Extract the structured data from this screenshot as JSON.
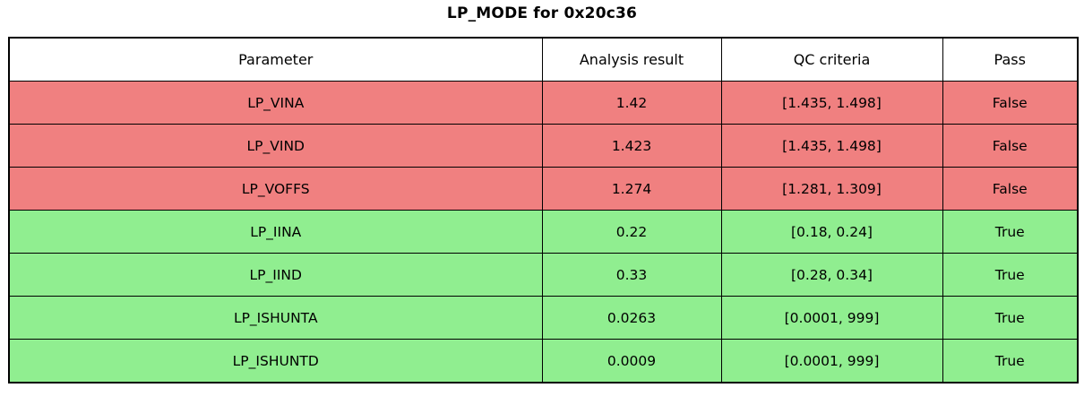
{
  "colors": {
    "fail_row": "#f08080",
    "pass_row": "#90ee90",
    "border": "#000000",
    "text": "#000000",
    "background": "#ffffff"
  },
  "chart_data": {
    "type": "table",
    "title": "LP_MODE for 0x20c36",
    "columns": [
      "Parameter",
      "Analysis result",
      "QC criteria",
      "Pass"
    ],
    "rows": [
      {
        "parameter": "LP_VINA",
        "analysis_result": "1.42",
        "qc_criteria": "[1.435, 1.498]",
        "pass": "False"
      },
      {
        "parameter": "LP_VIND",
        "analysis_result": "1.423",
        "qc_criteria": "[1.435, 1.498]",
        "pass": "False"
      },
      {
        "parameter": "LP_VOFFS",
        "analysis_result": "1.274",
        "qc_criteria": "[1.281, 1.309]",
        "pass": "False"
      },
      {
        "parameter": "LP_IINA",
        "analysis_result": "0.22",
        "qc_criteria": "[0.18, 0.24]",
        "pass": "True"
      },
      {
        "parameter": "LP_IIND",
        "analysis_result": "0.33",
        "qc_criteria": "[0.28, 0.34]",
        "pass": "True"
      },
      {
        "parameter": "LP_ISHUNTA",
        "analysis_result": "0.0263",
        "qc_criteria": "[0.0001, 999]",
        "pass": "True"
      },
      {
        "parameter": "LP_ISHUNTD",
        "analysis_result": "0.0009",
        "qc_criteria": "[0.0001, 999]",
        "pass": "True"
      }
    ],
    "layout": {
      "title_position": "top-center",
      "row_color_rule": "pass=True -> green, pass=False -> red",
      "header_background": "#ffffff"
    }
  }
}
